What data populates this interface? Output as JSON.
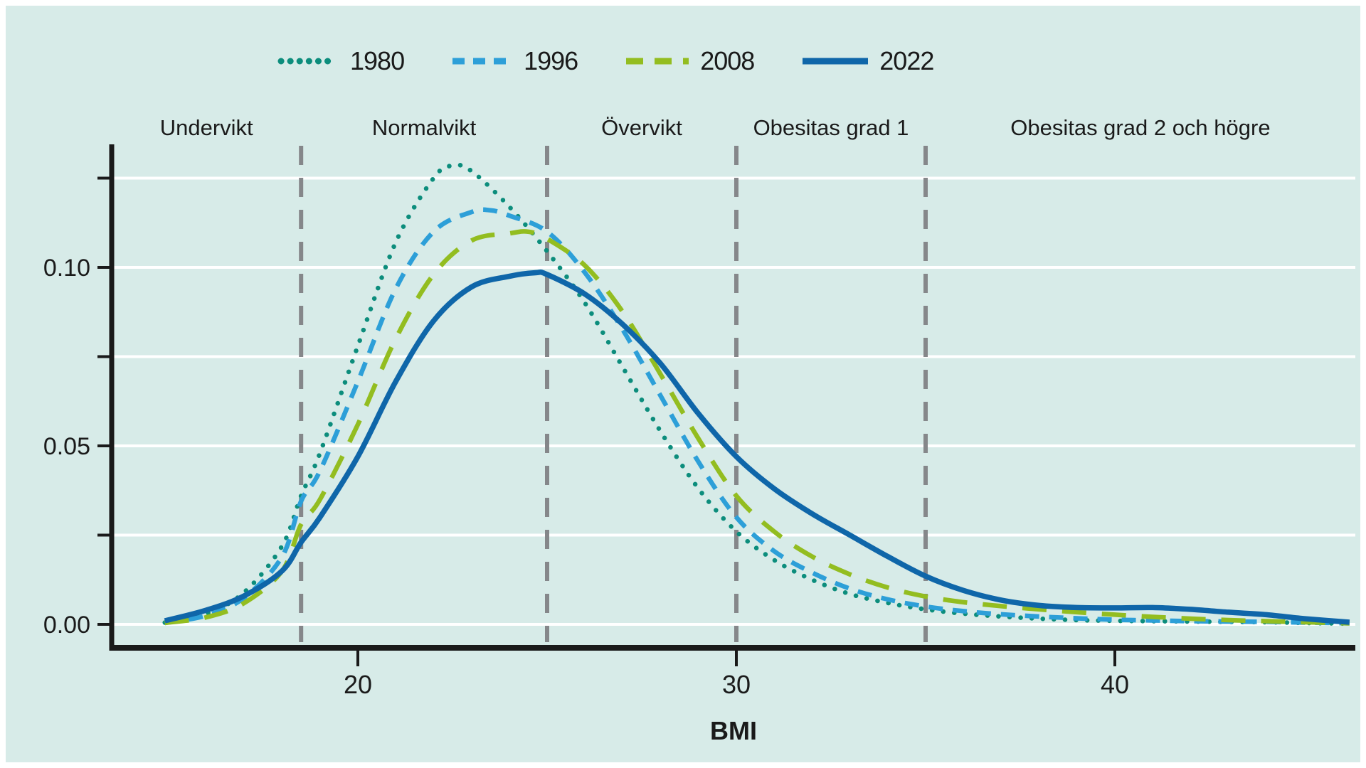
{
  "figure": {
    "background": "#ffffff",
    "card_background": "#d7ebe8",
    "axis_color": "#1a1a1a",
    "gridline_color": "#ffffff"
  },
  "legend": {
    "items": [
      {
        "label": "1980"
      },
      {
        "label": "1996"
      },
      {
        "label": "2008"
      },
      {
        "label": "2022"
      }
    ]
  },
  "chart_data": {
    "type": "line",
    "title": "",
    "xlabel": "BMI",
    "ylabel": "",
    "xlim": [
      13.5,
      46.35
    ],
    "ylim": [
      0,
      0.135
    ],
    "x_ticks": [
      20,
      30,
      40
    ],
    "y_ticks": [
      0,
      0.025,
      0.05,
      0.075,
      0.1,
      0.125
    ],
    "y_tick_labels": [
      {
        "value": 0.0,
        "label": "0.00"
      },
      {
        "value": 0.05,
        "label": "0.05"
      },
      {
        "value": 0.1,
        "label": "0.10"
      }
    ],
    "grid": "horizontal",
    "legend_position": "top",
    "reference_lines": {
      "x_values": [
        18.5,
        25,
        30,
        35
      ],
      "color": "#85878a",
      "style": "dashed"
    },
    "category_bands": [
      {
        "label": "Undervikt",
        "from": 13.5,
        "to": 18.5
      },
      {
        "label": "Normalvikt",
        "from": 18.5,
        "to": 25
      },
      {
        "label": "Övervikt",
        "from": 25,
        "to": 30
      },
      {
        "label": "Obesitas grad 1",
        "from": 30,
        "to": 35
      },
      {
        "label": "Obesitas grad 2 och högre",
        "from": 35,
        "to": 46.35
      }
    ],
    "series": [
      {
        "name": "1980",
        "color": "#0c8d7c",
        "style": "dotted",
        "points": [
          [
            14.9,
            0.0005
          ],
          [
            16,
            0.003
          ],
          [
            17,
            0.009
          ],
          [
            18,
            0.022
          ],
          [
            18.5,
            0.036
          ],
          [
            19,
            0.048
          ],
          [
            20,
            0.078
          ],
          [
            21,
            0.107
          ],
          [
            22,
            0.125
          ],
          [
            22.5,
            0.1285
          ],
          [
            23,
            0.127
          ],
          [
            24,
            0.117
          ],
          [
            25,
            0.1045
          ],
          [
            26,
            0.09
          ],
          [
            27,
            0.072
          ],
          [
            28,
            0.054
          ],
          [
            29,
            0.038
          ],
          [
            30,
            0.026
          ],
          [
            31,
            0.018
          ],
          [
            32,
            0.0125
          ],
          [
            33,
            0.0085
          ],
          [
            34,
            0.006
          ],
          [
            35,
            0.0042
          ],
          [
            36,
            0.003
          ],
          [
            37,
            0.0022
          ],
          [
            38,
            0.0016
          ],
          [
            39,
            0.0012
          ],
          [
            40,
            0.001
          ],
          [
            41,
            0.0009
          ],
          [
            42,
            0.0008
          ],
          [
            43,
            0.0007
          ],
          [
            44,
            0.0006
          ],
          [
            45,
            0.0004
          ],
          [
            46.2,
            0.0002
          ]
        ]
      },
      {
        "name": "1996",
        "color": "#2d9fd8",
        "style": "dashed-short",
        "points": [
          [
            14.9,
            0.0004
          ],
          [
            16,
            0.0025
          ],
          [
            17,
            0.0075
          ],
          [
            18,
            0.019
          ],
          [
            18.5,
            0.0345
          ],
          [
            19,
            0.043
          ],
          [
            20,
            0.068
          ],
          [
            21,
            0.094
          ],
          [
            22,
            0.11
          ],
          [
            23,
            0.1155
          ],
          [
            23.5,
            0.116
          ],
          [
            24,
            0.1145
          ],
          [
            25,
            0.11
          ],
          [
            26,
            0.0985
          ],
          [
            27,
            0.0825
          ],
          [
            28,
            0.064
          ],
          [
            29,
            0.0455
          ],
          [
            30,
            0.03
          ],
          [
            31,
            0.0205
          ],
          [
            32,
            0.0145
          ],
          [
            33,
            0.01
          ],
          [
            34,
            0.007
          ],
          [
            35,
            0.005
          ],
          [
            36,
            0.0037
          ],
          [
            37,
            0.0028
          ],
          [
            38,
            0.0022
          ],
          [
            39,
            0.0017
          ],
          [
            40,
            0.0013
          ],
          [
            41,
            0.0011
          ],
          [
            42,
            0.0009
          ],
          [
            43,
            0.0008
          ],
          [
            44,
            0.0007
          ],
          [
            45,
            0.0005
          ],
          [
            46.2,
            0.0003
          ]
        ]
      },
      {
        "name": "2008",
        "color": "#93bd20",
        "style": "dashed-long",
        "points": [
          [
            14.9,
            0.0004
          ],
          [
            16,
            0.002
          ],
          [
            17,
            0.006
          ],
          [
            18,
            0.015
          ],
          [
            18.5,
            0.028
          ],
          [
            19,
            0.035
          ],
          [
            20,
            0.056
          ],
          [
            21,
            0.08
          ],
          [
            22,
            0.098
          ],
          [
            23,
            0.1075
          ],
          [
            24,
            0.1095
          ],
          [
            24.5,
            0.11
          ],
          [
            25,
            0.108
          ],
          [
            26,
            0.1005
          ],
          [
            27,
            0.0875
          ],
          [
            28,
            0.07
          ],
          [
            29,
            0.052
          ],
          [
            30,
            0.036
          ],
          [
            31,
            0.026
          ],
          [
            32,
            0.019
          ],
          [
            33,
            0.014
          ],
          [
            34,
            0.0103
          ],
          [
            35,
            0.0078
          ],
          [
            36,
            0.0062
          ],
          [
            37,
            0.0051
          ],
          [
            38,
            0.0042
          ],
          [
            39,
            0.0034
          ],
          [
            40,
            0.0027
          ],
          [
            41,
            0.0021
          ],
          [
            42,
            0.0016
          ],
          [
            43,
            0.0012
          ],
          [
            44,
            0.0009
          ],
          [
            45,
            0.0006
          ],
          [
            46.2,
            0.0003
          ]
        ]
      },
      {
        "name": "2022",
        "color": "#0f66a9",
        "style": "solid",
        "points": [
          [
            14.9,
            0.001
          ],
          [
            16,
            0.004
          ],
          [
            17,
            0.008
          ],
          [
            18,
            0.015
          ],
          [
            18.5,
            0.023
          ],
          [
            19,
            0.03
          ],
          [
            20,
            0.047
          ],
          [
            21,
            0.068
          ],
          [
            22,
            0.085
          ],
          [
            23,
            0.0945
          ],
          [
            24,
            0.0975
          ],
          [
            24.7,
            0.0985
          ],
          [
            25,
            0.098
          ],
          [
            26,
            0.0925
          ],
          [
            27,
            0.084
          ],
          [
            28,
            0.073
          ],
          [
            29,
            0.059
          ],
          [
            30,
            0.047
          ],
          [
            31,
            0.038
          ],
          [
            32,
            0.031
          ],
          [
            33,
            0.025
          ],
          [
            34,
            0.019
          ],
          [
            35,
            0.0135
          ],
          [
            36,
            0.0095
          ],
          [
            37,
            0.0068
          ],
          [
            38,
            0.0053
          ],
          [
            39,
            0.0047
          ],
          [
            40,
            0.0046
          ],
          [
            41,
            0.0047
          ],
          [
            42,
            0.0042
          ],
          [
            43,
            0.0034
          ],
          [
            44,
            0.0027
          ],
          [
            45,
            0.0016
          ],
          [
            46.2,
            0.0006
          ]
        ]
      }
    ]
  }
}
